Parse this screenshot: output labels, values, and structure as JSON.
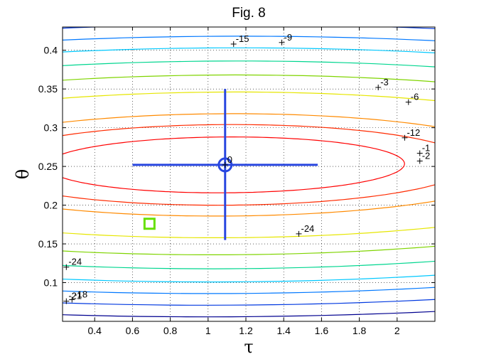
{
  "chart_data": {
    "type": "contour",
    "title": "Fig. 8",
    "xlabel": "τ",
    "ylabel": "θ",
    "xlim": [
      0.23,
      2.2
    ],
    "ylim": [
      0.05,
      0.43
    ],
    "x_ticks": [
      0.4,
      0.6,
      0.8,
      1,
      1.2,
      1.4,
      1.6,
      1.8,
      2
    ],
    "x_tick_labels": [
      "0.4",
      "0.6",
      "0.8",
      "1",
      "1.2",
      "1.4",
      "1.6",
      "1.8",
      "2"
    ],
    "y_ticks": [
      0.1,
      0.15,
      0.2,
      0.25,
      0.3,
      0.35,
      0.4
    ],
    "y_tick_labels": [
      "0.1",
      "0.15",
      "0.2",
      "0.25",
      "0.3",
      "0.35",
      "0.4"
    ],
    "grid": true,
    "contours": [
      {
        "level": -1,
        "color": "#ff0000",
        "center": [
          1.09,
          0.252
        ],
        "semi_axes": [
          0.95,
          0.036
        ],
        "angle_deg": 4.0
      },
      {
        "level": -2,
        "color": "#ff2a00",
        "center": [
          1.09,
          0.252
        ],
        "semi_axes": [
          1.3,
          0.052
        ],
        "angle_deg": 4.0
      },
      {
        "level": -3,
        "color": "#ff8a00",
        "center": [
          1.09,
          0.252
        ],
        "semi_axes": [
          1.62,
          0.066
        ],
        "angle_deg": 4.0
      },
      {
        "level": -6,
        "color": "#e6e600",
        "center": [
          1.09,
          0.252
        ],
        "semi_axes": [
          2.25,
          0.094
        ],
        "angle_deg": 4.0
      },
      {
        "level": -9,
        "color": "#7fd400",
        "center": [
          1.09,
          0.252
        ],
        "semi_axes": [
          2.75,
          0.116
        ],
        "angle_deg": 4.0
      },
      {
        "level": -12,
        "color": "#00d68f",
        "center": [
          1.09,
          0.252
        ],
        "semi_axes": [
          3.15,
          0.134
        ],
        "angle_deg": 4.0
      },
      {
        "level": -15,
        "color": "#00c8ff",
        "center": [
          1.09,
          0.252
        ],
        "semi_axes": [
          3.55,
          0.151
        ],
        "angle_deg": 4.0
      },
      {
        "level": -18,
        "color": "#0078ff",
        "center": [
          1.09,
          0.252
        ],
        "semi_axes": [
          3.9,
          0.166
        ],
        "angle_deg": 4.0
      },
      {
        "level": -21,
        "color": "#0038e0",
        "center": [
          1.09,
          0.252
        ],
        "semi_axes": [
          4.25,
          0.181
        ],
        "angle_deg": 4.0
      },
      {
        "level": -24,
        "color": "#00008f",
        "center": [
          1.09,
          0.252
        ],
        "semi_axes": [
          4.6,
          0.196
        ],
        "angle_deg": 4.0
      }
    ],
    "contour_labels": [
      {
        "text": "-15",
        "x": 1.135,
        "y": 0.408
      },
      {
        "text": "-9",
        "x": 1.39,
        "y": 0.41
      },
      {
        "text": "-3",
        "x": 1.9,
        "y": 0.352
      },
      {
        "text": "-6",
        "x": 2.06,
        "y": 0.333
      },
      {
        "text": "-12",
        "x": 2.04,
        "y": 0.287
      },
      {
        "text": "-1",
        "x": 2.12,
        "y": 0.267
      },
      {
        "text": "-2",
        "x": 2.12,
        "y": 0.257
      },
      {
        "text": "-24",
        "x": 1.48,
        "y": 0.163
      },
      {
        "text": "-24",
        "x": 0.25,
        "y": 0.12
      },
      {
        "text": "-21",
        "x": 0.25,
        "y": 0.076
      },
      {
        "text": "-18",
        "x": 0.28,
        "y": 0.078
      },
      {
        "text": "0",
        "x": 1.09,
        "y": 0.252
      }
    ],
    "estimate": {
      "x": 1.09,
      "y": 0.252,
      "x_interval": [
        0.6,
        1.58
      ],
      "y_interval": [
        0.155,
        0.35
      ],
      "color": "#2846e0"
    },
    "start_point": {
      "x": 0.69,
      "y": 0.176,
      "color": "#66e000"
    }
  }
}
